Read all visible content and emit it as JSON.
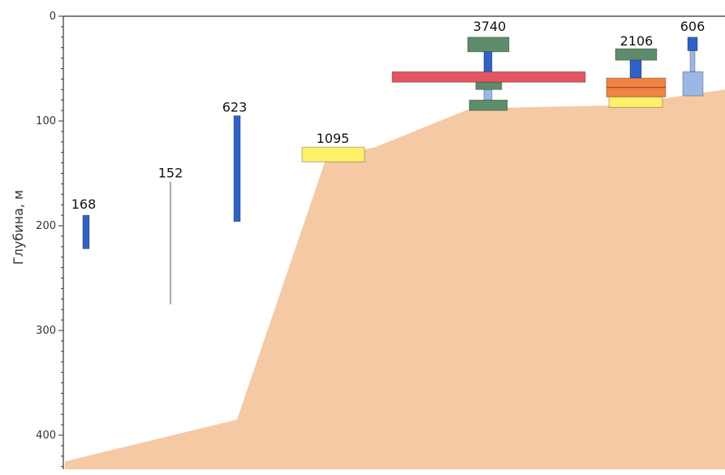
{
  "chart_data": {
    "type": "other",
    "ylabel": "Глубина, м",
    "ylim": [
      0,
      430
    ],
    "y_inverted": true,
    "yticks": [
      0,
      100,
      200,
      300,
      400
    ],
    "y_minor_step": 10,
    "grid": false,
    "colors": {
      "terrain": "#f5c9a3",
      "blue": "#2f62c9",
      "light_blue": "#9ab8e6",
      "green": "#5e8c6a",
      "red": "#e25560",
      "orange": "#ef8442",
      "yellow": "#fff06a",
      "thin_line": "#555555"
    },
    "terrain_profile_depths": [
      425,
      385,
      135,
      125,
      88,
      85,
      70
    ],
    "labels": [
      {
        "text": "168",
        "depth": 187
      },
      {
        "text": "152",
        "depth": 157
      },
      {
        "text": "623",
        "depth": 94
      },
      {
        "text": "1095",
        "depth": 124
      },
      {
        "text": "3740",
        "depth": 17
      },
      {
        "text": "2106",
        "depth": 31
      },
      {
        "text": "606",
        "depth": 17
      }
    ],
    "sample_groups": [
      {
        "label": "168",
        "markers": [
          {
            "type": "bar",
            "color": "blue",
            "from": 190,
            "to": 222
          }
        ]
      },
      {
        "label": "152",
        "markers": [
          {
            "type": "line",
            "color": "thin_line",
            "from": 158,
            "to": 275
          }
        ]
      },
      {
        "label": "623",
        "markers": [
          {
            "type": "bar",
            "color": "blue",
            "from": 95,
            "to": 196
          }
        ]
      },
      {
        "label": "1095",
        "markers": [
          {
            "type": "wide",
            "color": "yellow",
            "from": 125,
            "to": 139
          }
        ]
      },
      {
        "label": "3740",
        "markers": [
          {
            "type": "wide",
            "color": "green",
            "from": 20,
            "to": 34
          },
          {
            "type": "bar",
            "color": "blue",
            "from": 34,
            "to": 53
          },
          {
            "type": "wide",
            "color": "red",
            "from": 53,
            "to": 63
          },
          {
            "type": "wide",
            "color": "green",
            "from": 63,
            "to": 70
          },
          {
            "type": "bar",
            "color": "light_blue",
            "from": 70,
            "to": 80
          },
          {
            "type": "wide",
            "color": "green",
            "from": 80,
            "to": 90
          }
        ]
      },
      {
        "label": "2106",
        "markers": [
          {
            "type": "wide",
            "color": "green",
            "from": 31,
            "to": 42
          },
          {
            "type": "bar",
            "color": "blue",
            "from": 42,
            "to": 59
          },
          {
            "type": "wide",
            "color": "orange",
            "from": 59,
            "to": 77
          },
          {
            "type": "wide",
            "color": "yellow",
            "from": 77,
            "to": 87
          }
        ]
      },
      {
        "label": "606",
        "markers": [
          {
            "type": "bar",
            "color": "blue",
            "from": 20,
            "to": 33
          },
          {
            "type": "bar",
            "color": "light_blue",
            "from": 33,
            "to": 53
          },
          {
            "type": "wide",
            "color": "light_blue",
            "from": 53,
            "to": 76
          }
        ]
      }
    ]
  }
}
